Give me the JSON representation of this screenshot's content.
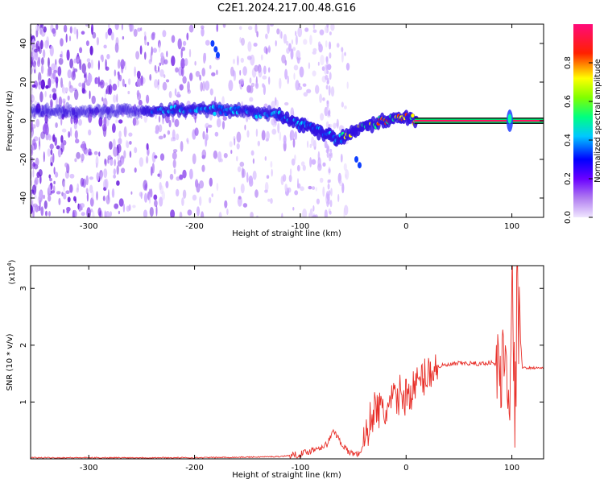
{
  "title": "C2E1.2024.217.00.48.G16",
  "chart_data": [
    {
      "type": "heatmap",
      "xlabel": "Height of straight line (km)",
      "ylabel": "Frequency (Hz)",
      "xlim": [
        -355,
        130
      ],
      "ylim": [
        -50,
        50
      ],
      "xticks": [
        -300,
        -200,
        -100,
        0,
        100
      ],
      "yticks": [
        -40,
        -20,
        0,
        20,
        40
      ],
      "colorbar": {
        "label": "Normalized spectral amplitude",
        "range": [
          0.0,
          1.0
        ],
        "ticks": [
          "0.0",
          "0.2",
          "0.4",
          "0.6",
          "0.8"
        ],
        "colormap": [
          "#f0e6ff",
          "#8a2be2",
          "#0000ff",
          "#00ffff",
          "#00ff00",
          "#ffff00",
          "#ff0000",
          "#ff1493"
        ]
      },
      "ridge": {
        "x": [
          -355,
          -300,
          -250,
          -200,
          -150,
          -120,
          -100,
          -80,
          -65,
          -55,
          -40,
          -20,
          0,
          10,
          90,
          100,
          130
        ],
        "freq": [
          5,
          5,
          5,
          6,
          5,
          3,
          -2,
          -6,
          -10,
          -7,
          -3,
          0,
          2,
          0,
          0,
          0,
          0
        ]
      },
      "grid": false
    },
    {
      "type": "line",
      "xlabel": "Height of straight line (km)",
      "ylabel": "SNR (10 * v/v)",
      "yscale_label": "(x10",
      "yscale_exp": "4",
      "yscale_close": ")",
      "xlim": [
        -355,
        130
      ],
      "ylim": [
        0,
        3.4
      ],
      "xticks": [
        -300,
        -200,
        -100,
        0,
        100
      ],
      "yticks": [
        1,
        2,
        3
      ],
      "color": "#e8302a",
      "series": [
        {
          "x": [
            -355,
            -300,
            -250,
            -200,
            -150,
            -120,
            -100,
            -85,
            -75,
            -68,
            -62,
            -55,
            -45,
            -40,
            -35,
            -30,
            -25,
            -20,
            -15,
            -10,
            -5,
            0,
            5,
            10,
            15,
            20,
            25,
            30,
            40,
            50,
            60,
            70,
            80,
            85,
            90,
            95,
            98,
            100,
            103,
            105,
            110,
            120,
            130
          ],
          "y": [
            0.02,
            0.02,
            0.02,
            0.02,
            0.03,
            0.04,
            0.08,
            0.18,
            0.25,
            0.5,
            0.3,
            0.12,
            0.08,
            0.25,
            0.6,
            0.9,
            0.85,
            0.8,
            0.95,
            1.05,
            1.15,
            1.1,
            1.2,
            1.3,
            1.4,
            1.5,
            1.58,
            1.63,
            1.65,
            1.68,
            1.68,
            1.67,
            1.7,
            1.65,
            1.5,
            1.9,
            1.2,
            3.3,
            0.6,
            2.9,
            1.6,
            1.6,
            1.6
          ]
        }
      ],
      "grid": false
    }
  ]
}
